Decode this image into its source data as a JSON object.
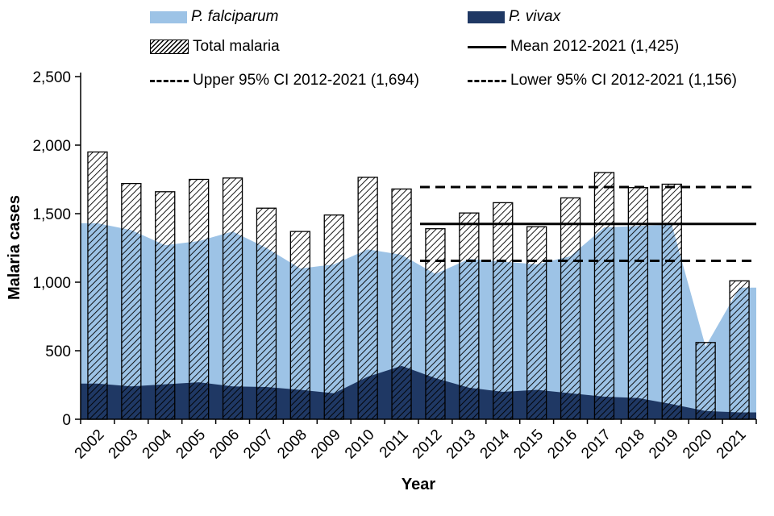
{
  "legend": {
    "falciparum": "P. falciparum",
    "vivax": "P. vivax",
    "total": "Total malaria",
    "mean": "Mean 2012-2021 (1,425)",
    "upper": "Upper 95% CI 2012-2021 (1,694)",
    "lower": "Lower 95% CI 2012-2021 (1,156)"
  },
  "colors": {
    "falciparum": "#9dc3e6",
    "vivax": "#1f3864",
    "line": "#000000"
  },
  "chart_data": {
    "type": "combo",
    "title": "",
    "xlabel": "Year",
    "ylabel": "Malaria cases",
    "ylim": [
      0,
      2500
    ],
    "ytick_labels": [
      "0",
      "500",
      "1,000",
      "1,500",
      "2,000",
      "2,500"
    ],
    "ytick_values": [
      0,
      500,
      1000,
      1500,
      2000,
      2500
    ],
    "grid": false,
    "legend_position": "top",
    "categories": [
      "2002",
      "2003",
      "2004",
      "2005",
      "2006",
      "2007",
      "2008",
      "2009",
      "2010",
      "2011",
      "2012",
      "2013",
      "2014",
      "2015",
      "2016",
      "2017",
      "2018",
      "2019",
      "2020",
      "2021"
    ],
    "series": [
      {
        "name": "P. falciparum",
        "type": "area",
        "color": "#9dc3e6",
        "values": [
          1430,
          1380,
          1270,
          1300,
          1370,
          1250,
          1100,
          1130,
          1240,
          1200,
          1060,
          1170,
          1150,
          1130,
          1190,
          1400,
          1410,
          1420,
          530,
          960
        ]
      },
      {
        "name": "P. vivax",
        "type": "area",
        "color": "#1f3864",
        "values": [
          260,
          240,
          255,
          270,
          240,
          235,
          215,
          190,
          310,
          390,
          300,
          230,
          200,
          215,
          190,
          165,
          155,
          110,
          60,
          50
        ]
      },
      {
        "name": "Total malaria",
        "type": "bar",
        "fill": "diagonal-hatch",
        "values": [
          1950,
          1720,
          1660,
          1750,
          1760,
          1540,
          1370,
          1490,
          1765,
          1680,
          1390,
          1505,
          1580,
          1405,
          1615,
          1800,
          1690,
          1715,
          560,
          1010
        ]
      },
      {
        "name": "Mean 2012-2021 (1,425)",
        "type": "reference-line",
        "line_style": "solid",
        "value": 1425,
        "span_start": "2012",
        "span_end": "2021"
      },
      {
        "name": "Upper 95% CI 2012-2021 (1,694)",
        "type": "reference-line",
        "line_style": "dashed",
        "value": 1694,
        "span_start": "2012",
        "span_end": "2021"
      },
      {
        "name": "Lower 95% CI 2012-2021 (1,156)",
        "type": "reference-line",
        "line_style": "dashed",
        "value": 1156,
        "span_start": "2012",
        "span_end": "2021"
      }
    ]
  }
}
